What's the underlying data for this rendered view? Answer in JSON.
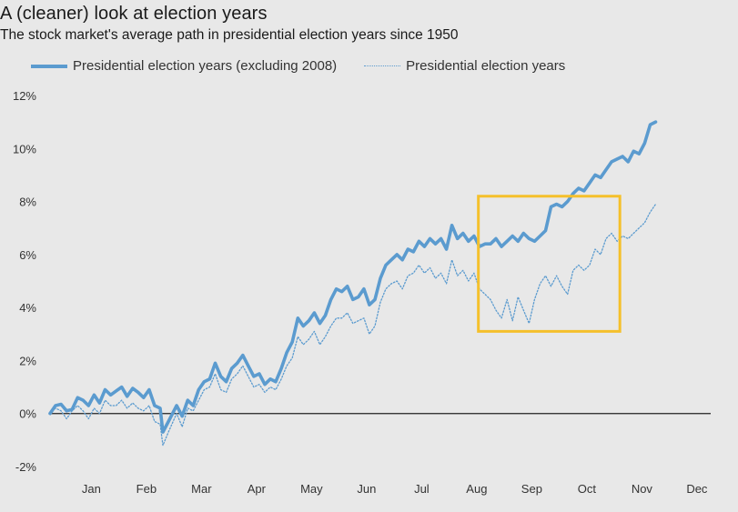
{
  "title": "A (cleaner) look at election years",
  "subtitle": "The stock market's average path in presidential election years since 1950",
  "colors": {
    "background": "#e8e8e8",
    "series": "#5b9bcf",
    "highlight": "#f5c02b",
    "zero_line": "#222222"
  },
  "chart_data": {
    "type": "line",
    "title": "A (cleaner) look at election years",
    "subtitle": "The stock market's average path in presidential election years since 1950",
    "xlabel": "",
    "ylabel": "",
    "x_ticks": [
      "Jan",
      "Feb",
      "Mar",
      "Apr",
      "May",
      "Jun",
      "Jul",
      "Aug",
      "Sep",
      "Oct",
      "Nov",
      "Dec"
    ],
    "xlim": [
      0,
      12
    ],
    "y_ticks": [
      "12%",
      "10%",
      "8%",
      "6%",
      "4%",
      "2%",
      "0%",
      "-2%"
    ],
    "ylim": [
      -2,
      12
    ],
    "legend_position": "top",
    "grid": false,
    "highlight_box": {
      "x": [
        7.78,
        10.35
      ],
      "y": [
        3.1,
        8.2
      ]
    },
    "series": [
      {
        "name": "Presidential election years (excluding 2008)",
        "style": "solid",
        "points": [
          [
            0,
            0
          ],
          [
            0.1,
            0.3
          ],
          [
            0.2,
            0.35
          ],
          [
            0.3,
            0.1
          ],
          [
            0.4,
            0.15
          ],
          [
            0.5,
            0.6
          ],
          [
            0.6,
            0.5
          ],
          [
            0.7,
            0.3
          ],
          [
            0.8,
            0.7
          ],
          [
            0.9,
            0.4
          ],
          [
            1.0,
            0.9
          ],
          [
            1.1,
            0.7
          ],
          [
            1.2,
            0.85
          ],
          [
            1.3,
            1.0
          ],
          [
            1.4,
            0.65
          ],
          [
            1.5,
            0.95
          ],
          [
            1.6,
            0.8
          ],
          [
            1.7,
            0.6
          ],
          [
            1.8,
            0.9
          ],
          [
            1.9,
            0.3
          ],
          [
            2.0,
            0.2
          ],
          [
            2.05,
            -0.7
          ],
          [
            2.15,
            -0.3
          ],
          [
            2.3,
            0.3
          ],
          [
            2.4,
            -0.1
          ],
          [
            2.5,
            0.5
          ],
          [
            2.6,
            0.3
          ],
          [
            2.7,
            0.9
          ],
          [
            2.8,
            1.2
          ],
          [
            2.9,
            1.3
          ],
          [
            3.0,
            1.9
          ],
          [
            3.1,
            1.4
          ],
          [
            3.2,
            1.2
          ],
          [
            3.3,
            1.7
          ],
          [
            3.4,
            1.9
          ],
          [
            3.5,
            2.2
          ],
          [
            3.6,
            1.8
          ],
          [
            3.7,
            1.4
          ],
          [
            3.8,
            1.5
          ],
          [
            3.9,
            1.1
          ],
          [
            4.0,
            1.3
          ],
          [
            4.1,
            1.2
          ],
          [
            4.2,
            1.7
          ],
          [
            4.3,
            2.3
          ],
          [
            4.4,
            2.7
          ],
          [
            4.5,
            3.6
          ],
          [
            4.6,
            3.3
          ],
          [
            4.7,
            3.5
          ],
          [
            4.8,
            3.8
          ],
          [
            4.9,
            3.4
          ],
          [
            5.0,
            3.7
          ],
          [
            5.1,
            4.3
          ],
          [
            5.2,
            4.7
          ],
          [
            5.3,
            4.6
          ],
          [
            5.4,
            4.8
          ],
          [
            5.5,
            4.3
          ],
          [
            5.6,
            4.4
          ],
          [
            5.7,
            4.7
          ],
          [
            5.8,
            4.1
          ],
          [
            5.9,
            4.3
          ],
          [
            6.0,
            5.1
          ],
          [
            6.1,
            5.6
          ],
          [
            6.2,
            5.8
          ],
          [
            6.3,
            6.0
          ],
          [
            6.4,
            5.8
          ],
          [
            6.5,
            6.2
          ],
          [
            6.6,
            6.1
          ],
          [
            6.7,
            6.5
          ],
          [
            6.8,
            6.3
          ],
          [
            6.9,
            6.6
          ],
          [
            7.0,
            6.4
          ],
          [
            7.1,
            6.6
          ],
          [
            7.2,
            6.2
          ],
          [
            7.3,
            7.1
          ],
          [
            7.4,
            6.6
          ],
          [
            7.5,
            6.8
          ],
          [
            7.6,
            6.5
          ],
          [
            7.7,
            6.7
          ],
          [
            7.8,
            6.3
          ],
          [
            7.9,
            6.4
          ],
          [
            8.0,
            6.4
          ],
          [
            8.1,
            6.6
          ],
          [
            8.2,
            6.3
          ],
          [
            8.3,
            6.5
          ],
          [
            8.4,
            6.7
          ],
          [
            8.5,
            6.5
          ],
          [
            8.6,
            6.8
          ],
          [
            8.7,
            6.6
          ],
          [
            8.8,
            6.5
          ],
          [
            8.9,
            6.7
          ],
          [
            9.0,
            6.9
          ],
          [
            9.1,
            7.8
          ],
          [
            9.2,
            7.9
          ],
          [
            9.3,
            7.8
          ],
          [
            9.4,
            8.0
          ],
          [
            9.5,
            8.3
          ],
          [
            9.6,
            8.5
          ],
          [
            9.7,
            8.4
          ],
          [
            9.8,
            8.7
          ],
          [
            9.9,
            9.0
          ],
          [
            10.0,
            8.9
          ],
          [
            10.1,
            9.2
          ],
          [
            10.2,
            9.5
          ],
          [
            10.3,
            9.6
          ],
          [
            10.4,
            9.7
          ],
          [
            10.5,
            9.5
          ],
          [
            10.6,
            9.9
          ],
          [
            10.7,
            9.8
          ],
          [
            10.8,
            10.2
          ],
          [
            10.9,
            10.9
          ],
          [
            11.0,
            11.0
          ]
        ]
      },
      {
        "name": "Presidential election years",
        "style": "dotted",
        "points": [
          [
            0,
            0
          ],
          [
            0.1,
            0.2
          ],
          [
            0.2,
            0.1
          ],
          [
            0.3,
            -0.2
          ],
          [
            0.4,
            0.1
          ],
          [
            0.5,
            0.3
          ],
          [
            0.6,
            0.1
          ],
          [
            0.7,
            -0.2
          ],
          [
            0.8,
            0.2
          ],
          [
            0.9,
            0.0
          ],
          [
            1.0,
            0.5
          ],
          [
            1.1,
            0.3
          ],
          [
            1.2,
            0.3
          ],
          [
            1.3,
            0.5
          ],
          [
            1.4,
            0.2
          ],
          [
            1.5,
            0.4
          ],
          [
            1.6,
            0.2
          ],
          [
            1.7,
            0.1
          ],
          [
            1.8,
            0.3
          ],
          [
            1.9,
            -0.3
          ],
          [
            2.0,
            -0.4
          ],
          [
            2.05,
            -1.2
          ],
          [
            2.15,
            -0.7
          ],
          [
            2.3,
            0.0
          ],
          [
            2.4,
            -0.5
          ],
          [
            2.5,
            0.2
          ],
          [
            2.6,
            0.1
          ],
          [
            2.7,
            0.5
          ],
          [
            2.8,
            0.9
          ],
          [
            2.9,
            1.0
          ],
          [
            3.0,
            1.5
          ],
          [
            3.1,
            0.9
          ],
          [
            3.2,
            0.8
          ],
          [
            3.3,
            1.3
          ],
          [
            3.4,
            1.5
          ],
          [
            3.5,
            1.8
          ],
          [
            3.6,
            1.4
          ],
          [
            3.7,
            1.0
          ],
          [
            3.8,
            1.1
          ],
          [
            3.9,
            0.8
          ],
          [
            4.0,
            1.0
          ],
          [
            4.1,
            0.9
          ],
          [
            4.2,
            1.3
          ],
          [
            4.3,
            1.8
          ],
          [
            4.4,
            2.1
          ],
          [
            4.5,
            2.9
          ],
          [
            4.6,
            2.6
          ],
          [
            4.7,
            2.8
          ],
          [
            4.8,
            3.1
          ],
          [
            4.9,
            2.6
          ],
          [
            5.0,
            2.9
          ],
          [
            5.1,
            3.3
          ],
          [
            5.2,
            3.6
          ],
          [
            5.3,
            3.6
          ],
          [
            5.4,
            3.8
          ],
          [
            5.5,
            3.4
          ],
          [
            5.6,
            3.5
          ],
          [
            5.7,
            3.6
          ],
          [
            5.8,
            3.0
          ],
          [
            5.9,
            3.3
          ],
          [
            6.0,
            4.2
          ],
          [
            6.1,
            4.7
          ],
          [
            6.2,
            4.9
          ],
          [
            6.3,
            5.0
          ],
          [
            6.4,
            4.7
          ],
          [
            6.5,
            5.2
          ],
          [
            6.6,
            5.3
          ],
          [
            6.7,
            5.6
          ],
          [
            6.8,
            5.3
          ],
          [
            6.9,
            5.5
          ],
          [
            7.0,
            5.1
          ],
          [
            7.1,
            5.3
          ],
          [
            7.2,
            4.9
          ],
          [
            7.3,
            5.8
          ],
          [
            7.4,
            5.2
          ],
          [
            7.5,
            5.4
          ],
          [
            7.6,
            5.0
          ],
          [
            7.7,
            5.3
          ],
          [
            7.8,
            4.7
          ],
          [
            7.9,
            4.5
          ],
          [
            8.0,
            4.3
          ],
          [
            8.1,
            3.9
          ],
          [
            8.2,
            3.6
          ],
          [
            8.3,
            4.3
          ],
          [
            8.4,
            3.5
          ],
          [
            8.5,
            4.4
          ],
          [
            8.6,
            3.9
          ],
          [
            8.7,
            3.4
          ],
          [
            8.8,
            4.3
          ],
          [
            8.9,
            4.9
          ],
          [
            9.0,
            5.2
          ],
          [
            9.1,
            4.8
          ],
          [
            9.2,
            5.2
          ],
          [
            9.3,
            4.8
          ],
          [
            9.4,
            4.5
          ],
          [
            9.5,
            5.4
          ],
          [
            9.6,
            5.6
          ],
          [
            9.7,
            5.4
          ],
          [
            9.8,
            5.6
          ],
          [
            9.9,
            6.2
          ],
          [
            10.0,
            6.0
          ],
          [
            10.1,
            6.6
          ],
          [
            10.2,
            6.8
          ],
          [
            10.3,
            6.5
          ],
          [
            10.4,
            6.7
          ],
          [
            10.5,
            6.6
          ],
          [
            10.6,
            6.8
          ],
          [
            10.7,
            7.0
          ],
          [
            10.8,
            7.2
          ],
          [
            10.9,
            7.6
          ],
          [
            11.0,
            7.9
          ]
        ]
      }
    ]
  }
}
